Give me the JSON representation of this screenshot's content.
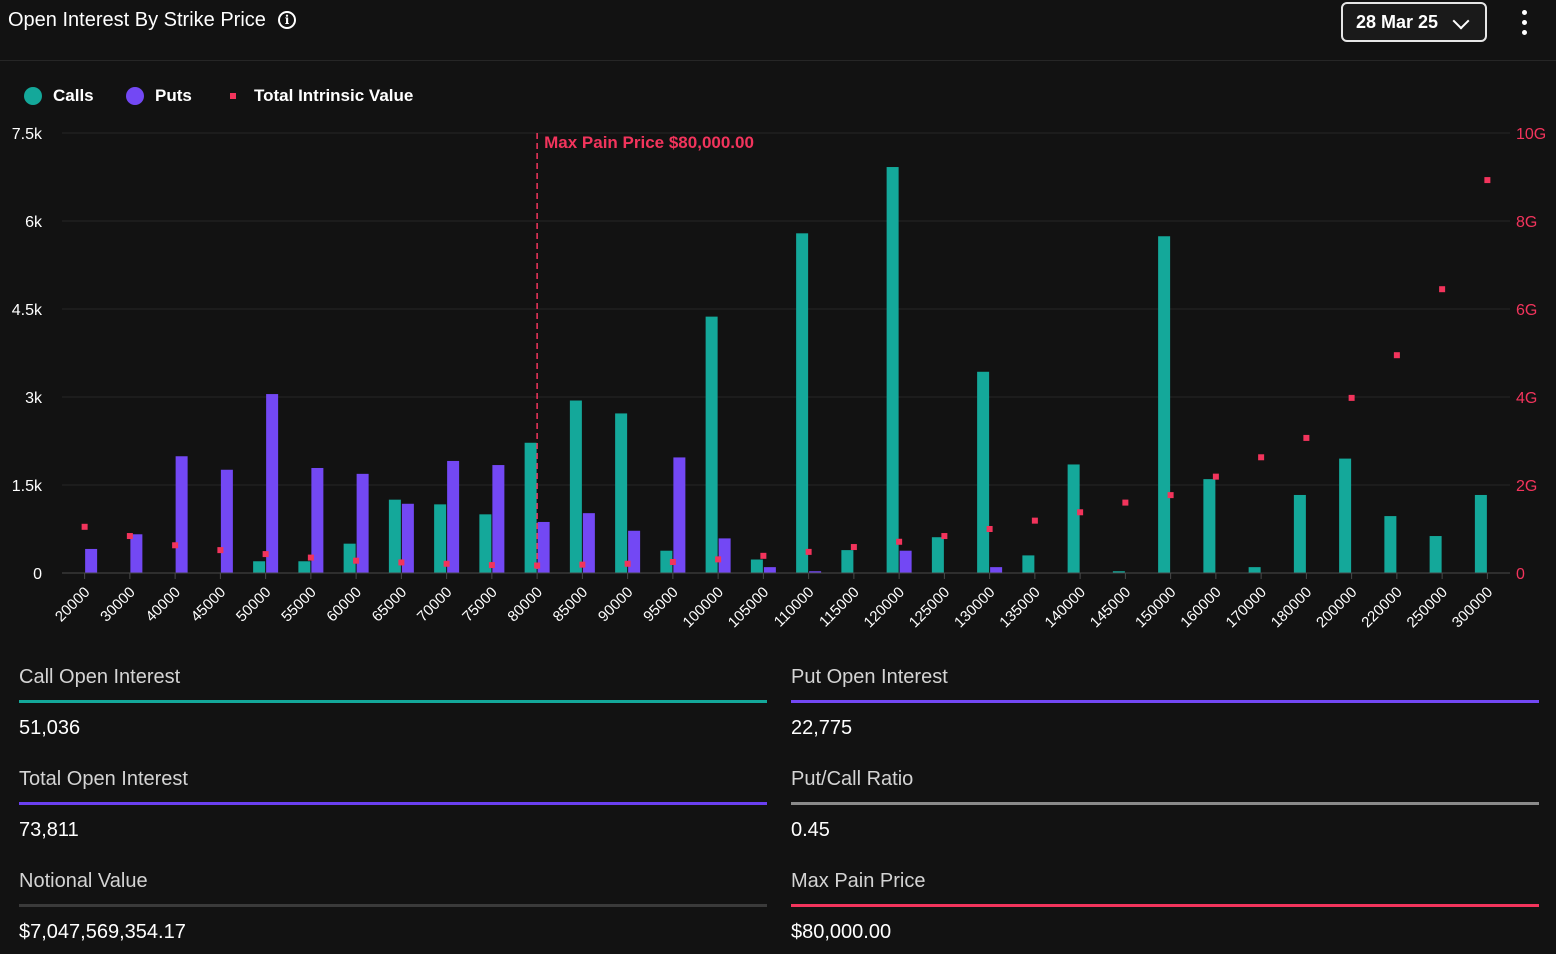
{
  "header": {
    "title": "Open Interest By Strike Price",
    "date_selected": "28 Mar 25"
  },
  "legend": [
    {
      "label": "Calls",
      "color": "#14a89a"
    },
    {
      "label": "Puts",
      "color": "#7348f4"
    },
    {
      "label": "Total Intrinsic Value",
      "color": "#f2345c"
    }
  ],
  "chart_data": {
    "type": "bar",
    "categories": [
      "20000",
      "30000",
      "40000",
      "45000",
      "50000",
      "55000",
      "60000",
      "65000",
      "70000",
      "75000",
      "80000",
      "85000",
      "90000",
      "95000",
      "100000",
      "105000",
      "110000",
      "115000",
      "120000",
      "125000",
      "130000",
      "135000",
      "140000",
      "145000",
      "150000",
      "160000",
      "170000",
      "180000",
      "200000",
      "220000",
      "250000",
      "300000"
    ],
    "series": [
      {
        "name": "Calls",
        "axis": "left",
        "color": "#14a89a",
        "values": [
          0,
          0,
          0,
          0,
          200,
          200,
          500,
          1250,
          1170,
          1000,
          2220,
          2940,
          2720,
          380,
          4370,
          230,
          5790,
          390,
          6920,
          610,
          3430,
          300,
          1850,
          30,
          5740,
          1600,
          100,
          1330,
          1950,
          970,
          630,
          1330
        ]
      },
      {
        "name": "Puts",
        "axis": "left",
        "color": "#7348f4",
        "values": [
          410,
          660,
          1990,
          1760,
          3050,
          1790,
          1690,
          1180,
          1910,
          1840,
          870,
          1020,
          720,
          1970,
          590,
          100,
          30,
          0,
          380,
          0,
          100,
          0,
          0,
          0,
          0,
          0,
          0,
          0,
          0,
          0,
          0,
          0
        ]
      },
      {
        "name": "Total Intrinsic Value",
        "axis": "right",
        "type": "scatter",
        "color": "#f2345c",
        "values": [
          1.05,
          0.84,
          0.63,
          0.52,
          0.43,
          0.35,
          0.28,
          0.24,
          0.21,
          0.18,
          0.17,
          0.19,
          0.21,
          0.25,
          0.31,
          0.39,
          0.48,
          0.59,
          0.71,
          0.84,
          1.0,
          1.19,
          1.38,
          1.6,
          1.77,
          2.19,
          2.63,
          3.07,
          3.98,
          4.95,
          6.45,
          8.93
        ]
      }
    ],
    "ylim": [
      0,
      7500
    ],
    "yticks": [
      "0",
      "1.5k",
      "3k",
      "4.5k",
      "6k",
      "7.5k"
    ],
    "y2lim": [
      0,
      10
    ],
    "y2ticks": [
      "0",
      "2G",
      "4G",
      "6G",
      "8G",
      "10G"
    ],
    "annotation": {
      "label": "Max Pain Price $80,000.00",
      "category": "80000"
    }
  },
  "stats": [
    {
      "label": "Call Open Interest",
      "value": "51,036",
      "color": "#14a89a"
    },
    {
      "label": "Put Open Interest",
      "value": "22,775",
      "color": "#7348f4"
    },
    {
      "label": "Total Open Interest",
      "value": "73,811",
      "color": "#6a3ff0"
    },
    {
      "label": "Put/Call Ratio",
      "value": "0.45",
      "color": "#8a8a8a"
    },
    {
      "label": "Notional Value",
      "value": "$7,047,569,354.17",
      "color": "#3a3a3a"
    },
    {
      "label": "Max Pain Price",
      "value": "$80,000.00",
      "color": "#f2345c"
    }
  ]
}
